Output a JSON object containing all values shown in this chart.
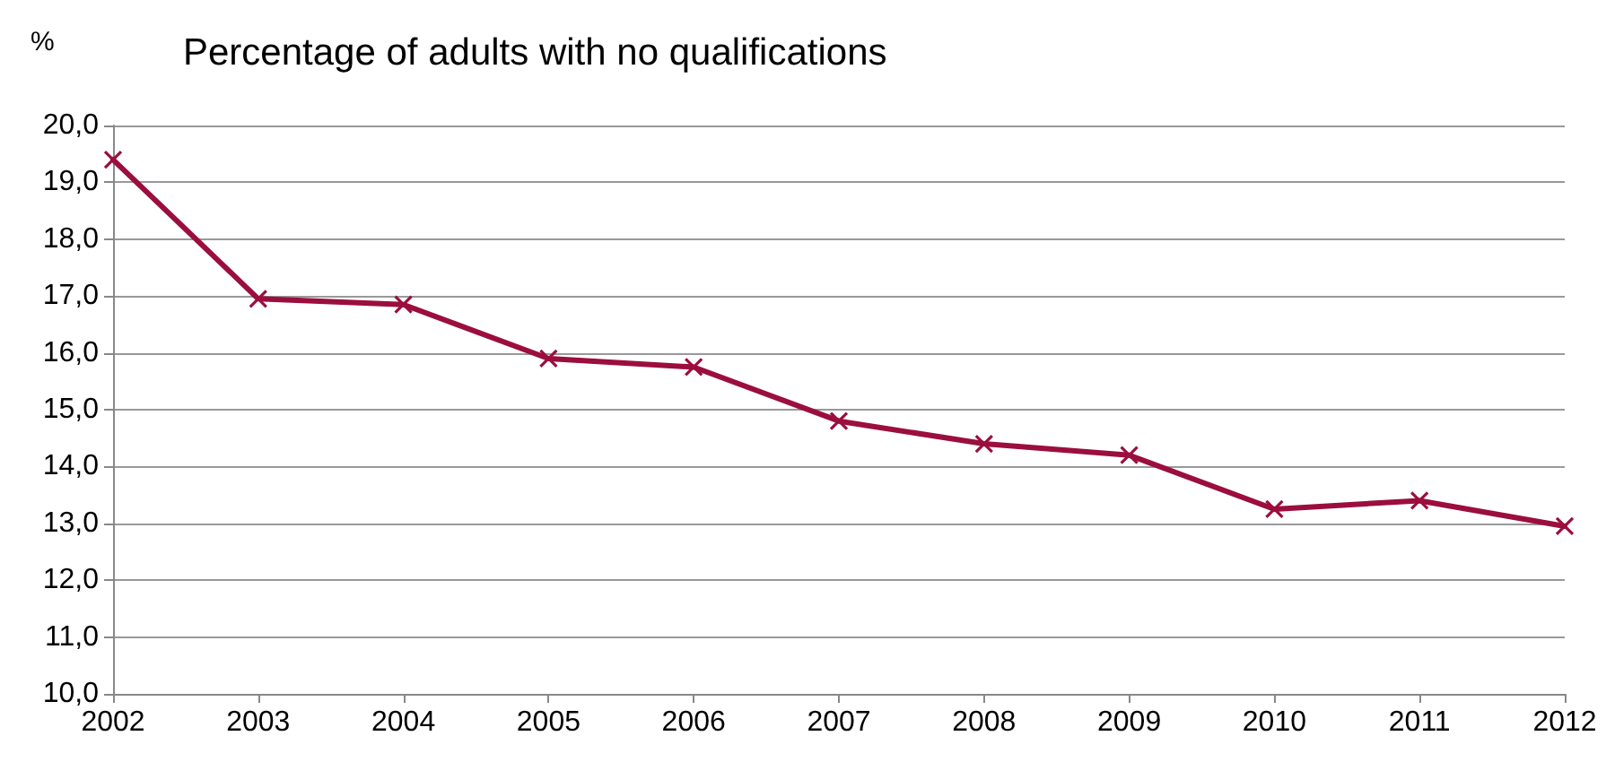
{
  "chart_data": {
    "type": "line",
    "title": "Percentage of adults with no qualifications",
    "ylabel": "%",
    "x": [
      2002,
      2003,
      2004,
      2005,
      2006,
      2007,
      2008,
      2009,
      2010,
      2011,
      2012
    ],
    "series": [
      {
        "color": "#9b0e3e",
        "values": [
          19.4,
          16.95,
          16.85,
          15.9,
          15.75,
          14.8,
          14.4,
          14.2,
          13.25,
          13.4,
          12.95
        ]
      }
    ],
    "xlim": [
      2002,
      2012
    ],
    "xticks": [
      2002,
      2003,
      2004,
      2005,
      2006,
      2007,
      2008,
      2009,
      2010,
      2011,
      2012
    ],
    "ylim": [
      10,
      20
    ],
    "yticks": [
      {
        "value": 10,
        "label": "10,0"
      },
      {
        "value": 11,
        "label": "11,0"
      },
      {
        "value": 12,
        "label": "12,0"
      },
      {
        "value": 13,
        "label": "13,0"
      },
      {
        "value": 14,
        "label": "14,0"
      },
      {
        "value": 15,
        "label": "15,0"
      },
      {
        "value": 16,
        "label": "16,0"
      },
      {
        "value": 17,
        "label": "17,0"
      },
      {
        "value": 18,
        "label": "18,0"
      },
      {
        "value": 19,
        "label": "19,0"
      },
      {
        "value": 20,
        "label": "20,0"
      }
    ],
    "grid": "y",
    "marker": "cross",
    "line_style": "solid"
  }
}
